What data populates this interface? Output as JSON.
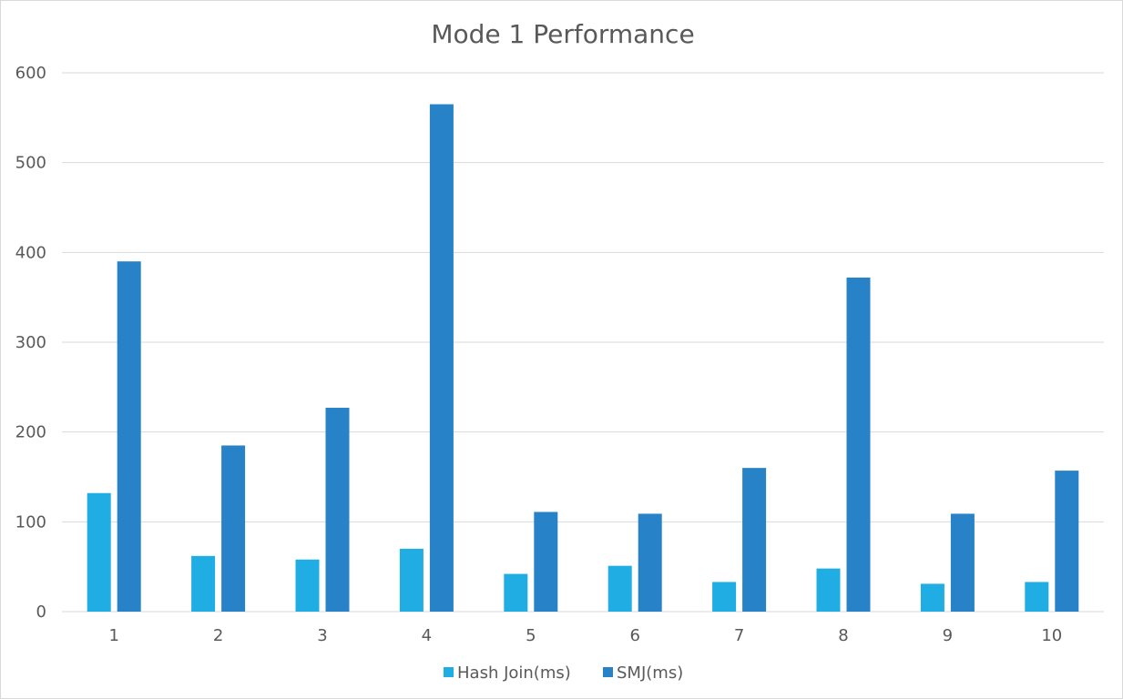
{
  "chart_data": {
    "type": "bar",
    "title": "Mode 1 Performance",
    "xlabel": "",
    "ylabel": "",
    "categories": [
      "1",
      "2",
      "3",
      "4",
      "5",
      "6",
      "7",
      "8",
      "9",
      "10"
    ],
    "series": [
      {
        "name": "Hash Join(ms)",
        "color": "#1fade4",
        "values": [
          132,
          62,
          58,
          70,
          42,
          51,
          33,
          48,
          31,
          33
        ]
      },
      {
        "name": "SMJ(ms)",
        "color": "#2882c8",
        "values": [
          390,
          185,
          227,
          565,
          111,
          109,
          160,
          372,
          109,
          157
        ]
      }
    ],
    "ylim": [
      0,
      600
    ],
    "yticks": [
      "0",
      "100",
      "200",
      "300",
      "400",
      "500",
      "600"
    ],
    "grid": true,
    "legend_position": "bottom"
  }
}
